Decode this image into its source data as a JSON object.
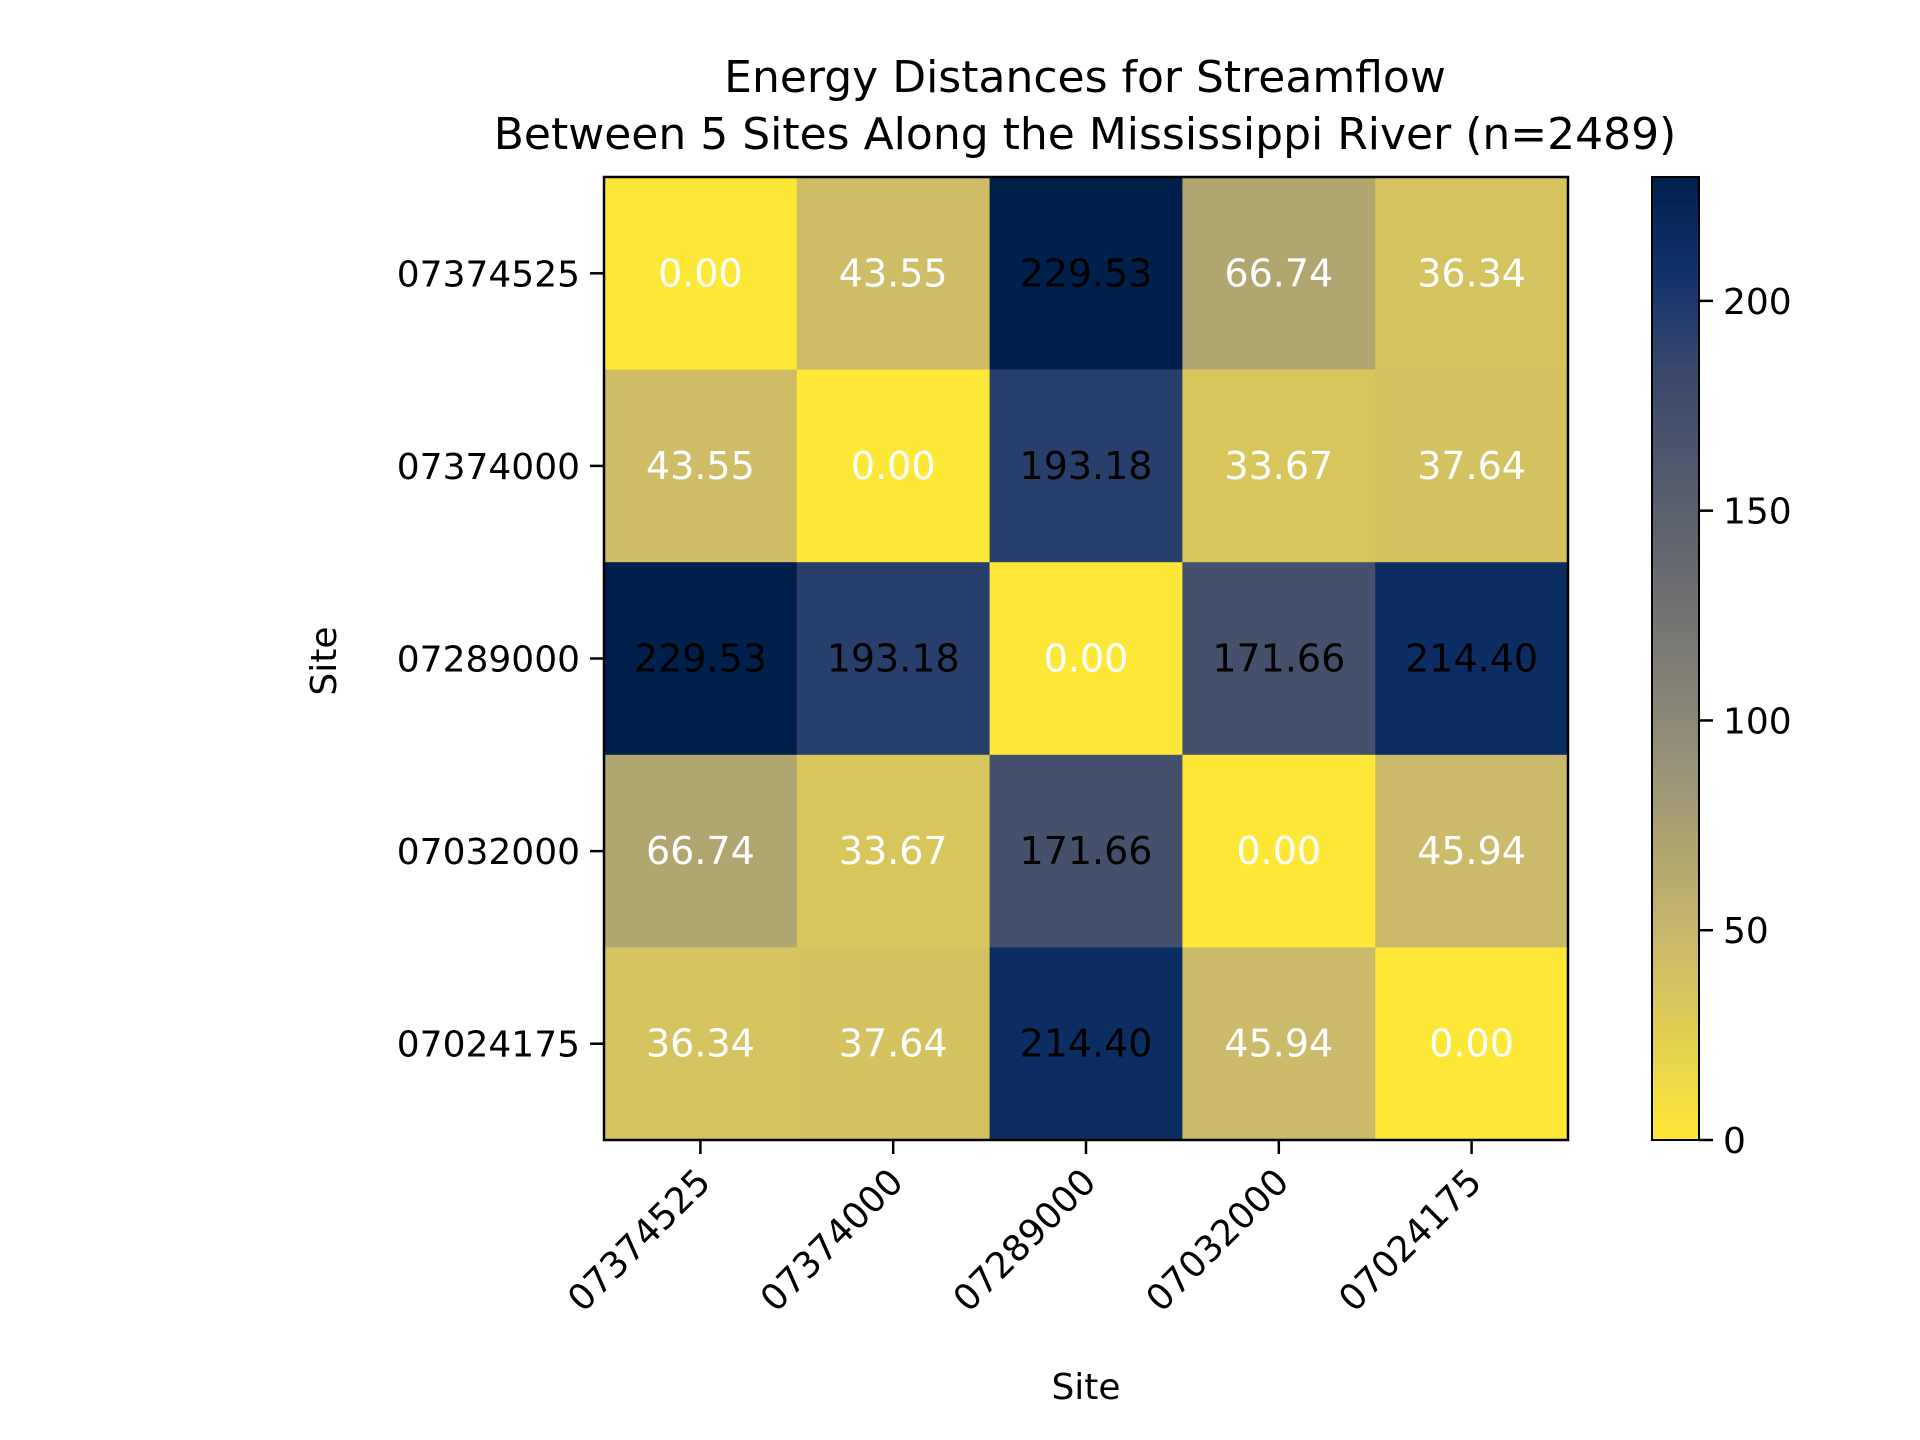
{
  "chart_data": {
    "type": "heatmap",
    "title": "Energy Distances for Streamflow",
    "subtitle": "Between 5 Sites Along the Mississippi River (n=2489)",
    "xlabel": "Site",
    "ylabel": "Site",
    "x_categories": [
      "07374525",
      "07374000",
      "07289000",
      "07032000",
      "07024175"
    ],
    "y_categories": [
      "07374525",
      "07374000",
      "07289000",
      "07032000",
      "07024175"
    ],
    "values": [
      [
        0.0,
        43.55,
        229.53,
        66.74,
        36.34
      ],
      [
        43.55,
        0.0,
        193.18,
        33.67,
        37.64
      ],
      [
        229.53,
        193.18,
        0.0,
        171.66,
        214.4
      ],
      [
        66.74,
        33.67,
        171.66,
        0.0,
        45.94
      ],
      [
        36.34,
        37.64,
        214.4,
        45.94,
        0.0
      ]
    ],
    "value_labels": [
      [
        "0.00",
        "43.55",
        "229.53",
        "66.74",
        "36.34"
      ],
      [
        "43.55",
        "0.00",
        "193.18",
        "33.67",
        "37.64"
      ],
      [
        "229.53",
        "193.18",
        "0.00",
        "171.66",
        "214.40"
      ],
      [
        "66.74",
        "33.67",
        "171.66",
        "0.00",
        "45.94"
      ],
      [
        "36.34",
        "37.64",
        "214.40",
        "45.94",
        "0.00"
      ]
    ],
    "colormap": "cividis_r",
    "colorbar": {
      "range": [
        0,
        229.53
      ],
      "ticks": [
        0,
        50,
        100,
        150,
        200
      ],
      "tick_labels": [
        "0",
        "50",
        "100",
        "150",
        "200"
      ]
    },
    "colors": {
      "low": "#fde737",
      "high": "#00204c",
      "text_light": "#ffffff",
      "text_dark": "#000000"
    },
    "grid": false,
    "legend": "none"
  }
}
